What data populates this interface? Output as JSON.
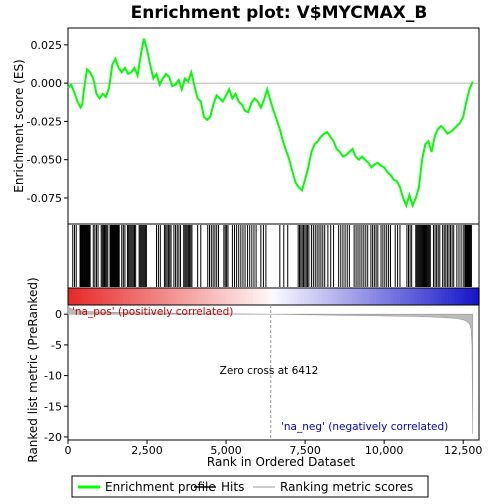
{
  "chart_data": {
    "type": "line",
    "title": "Enrichment plot: V$MYCMAX_B",
    "xlabel": "Rank in Ordered Dataset",
    "es_ylabel": "Enrichment score (ES)",
    "metric_ylabel": "Ranked list metric (PreRanked)",
    "xlim": [
      0,
      13000
    ],
    "x_ticks": [
      0,
      2500,
      5000,
      7500,
      10000,
      12500
    ],
    "x_tick_labels": [
      "0",
      "2,500",
      "5,000",
      "7,500",
      "10,000",
      "12,500"
    ],
    "es_ylim": [
      -0.092,
      0.036
    ],
    "es_ticks": [
      0.025,
      0.0,
      -0.025,
      -0.05,
      -0.075
    ],
    "es_tick_labels": [
      "0.025",
      "0.000",
      "-0.025",
      "-0.050",
      "-0.075"
    ],
    "metric_ylim": [
      -20.5,
      1.5
    ],
    "metric_ticks": [
      0,
      -5,
      -10,
      -15,
      -20
    ],
    "metric_tick_labels": [
      "0",
      "-5",
      "-10",
      "-15",
      "-20"
    ],
    "n_genes": 12800,
    "zero_cross": 6412,
    "annotations": {
      "pos_label": "'na_pos' (positively correlated)",
      "neg_label": "'na_neg' (negatively correlated)",
      "zero_cross_label": "Zero cross at 6412"
    },
    "legend": {
      "placement": "bottom",
      "items": [
        {
          "label": "Enrichment profile",
          "color": "#00ff00"
        },
        {
          "label": "Hits",
          "color": "#000000"
        },
        {
          "label": "Ranking metric scores",
          "color": "#bbbbbb"
        }
      ]
    },
    "series": [
      {
        "name": "Enrichment profile",
        "color": "#00ff00",
        "x": [
          0,
          100,
          200,
          300,
          400,
          450,
          500,
          600,
          700,
          800,
          850,
          900,
          1000,
          1100,
          1200,
          1300,
          1400,
          1500,
          1600,
          1700,
          1800,
          1900,
          2000,
          2100,
          2200,
          2300,
          2400,
          2500,
          2600,
          2700,
          2800,
          2900,
          3000,
          3100,
          3200,
          3300,
          3400,
          3500,
          3600,
          3700,
          3800,
          3900,
          4000,
          4100,
          4200,
          4300,
          4400,
          4500,
          4600,
          4700,
          4800,
          4900,
          5000,
          5100,
          5200,
          5300,
          5400,
          5500,
          5600,
          5700,
          5800,
          5900,
          6000,
          6100,
          6200,
          6300,
          6412,
          6500,
          6600,
          6700,
          6800,
          6900,
          7000,
          7100,
          7200,
          7300,
          7400,
          7500,
          7600,
          7700,
          7800,
          7900,
          8000,
          8100,
          8200,
          8300,
          8400,
          8500,
          8600,
          8700,
          8800,
          8900,
          9000,
          9100,
          9200,
          9300,
          9400,
          9500,
          9600,
          9700,
          9800,
          9900,
          10000,
          10100,
          10200,
          10300,
          10400,
          10500,
          10600,
          10700,
          10800,
          10900,
          11000,
          11100,
          11200,
          11300,
          11400,
          11500,
          11600,
          11700,
          11800,
          11900,
          12000,
          12100,
          12200,
          12300,
          12400,
          12500,
          12600,
          12700,
          12800
        ],
        "y": [
          -0.003,
          -0.001,
          -0.006,
          -0.012,
          -0.016,
          -0.014,
          -0.005,
          0.009,
          0.007,
          0.003,
          -0.002,
          -0.007,
          -0.01,
          -0.007,
          -0.009,
          -0.003,
          0.012,
          0.016,
          0.01,
          0.007,
          0.01,
          0.006,
          0.007,
          0.01,
          0.005,
          0.018,
          0.029,
          0.022,
          0.012,
          0.003,
          0.006,
          -0.001,
          0.003,
          0.006,
          0.004,
          -0.002,
          -0.001,
          0.002,
          -0.004,
          0.003,
          0.001,
          0.007,
          -0.002,
          -0.01,
          -0.012,
          -0.022,
          -0.024,
          -0.022,
          -0.014,
          -0.008,
          -0.01,
          -0.012,
          -0.008,
          -0.004,
          -0.01,
          -0.007,
          -0.012,
          -0.014,
          -0.018,
          -0.019,
          -0.013,
          -0.01,
          -0.012,
          -0.016,
          -0.011,
          -0.004,
          -0.012,
          -0.018,
          -0.024,
          -0.03,
          -0.038,
          -0.044,
          -0.05,
          -0.058,
          -0.065,
          -0.068,
          -0.07,
          -0.063,
          -0.055,
          -0.045,
          -0.04,
          -0.038,
          -0.035,
          -0.033,
          -0.032,
          -0.035,
          -0.038,
          -0.043,
          -0.045,
          -0.048,
          -0.047,
          -0.045,
          -0.043,
          -0.048,
          -0.05,
          -0.048,
          -0.05,
          -0.052,
          -0.055,
          -0.053,
          -0.052,
          -0.054,
          -0.055,
          -0.058,
          -0.06,
          -0.063,
          -0.064,
          -0.068,
          -0.075,
          -0.08,
          -0.073,
          -0.08,
          -0.075,
          -0.068,
          -0.05,
          -0.04,
          -0.038,
          -0.045,
          -0.035,
          -0.03,
          -0.028,
          -0.03,
          -0.033,
          -0.032,
          -0.03,
          -0.028,
          -0.026,
          -0.022,
          -0.012,
          -0.004,
          0.001
        ]
      }
    ],
    "hit_clusters": [
      {
        "start": 150,
        "end": 260,
        "n": 3
      },
      {
        "start": 380,
        "end": 700,
        "n": 16
      },
      {
        "start": 800,
        "end": 950,
        "n": 4
      },
      {
        "start": 1050,
        "end": 1260,
        "n": 7
      },
      {
        "start": 1330,
        "end": 1620,
        "n": 14
      },
      {
        "start": 1700,
        "end": 1800,
        "n": 3
      },
      {
        "start": 1880,
        "end": 2140,
        "n": 8
      },
      {
        "start": 2250,
        "end": 2480,
        "n": 8
      },
      {
        "start": 2800,
        "end": 2920,
        "n": 3
      },
      {
        "start": 3050,
        "end": 3260,
        "n": 6
      },
      {
        "start": 3350,
        "end": 3560,
        "n": 5
      },
      {
        "start": 3660,
        "end": 3920,
        "n": 8
      },
      {
        "start": 4100,
        "end": 4200,
        "n": 2
      },
      {
        "start": 4420,
        "end": 4760,
        "n": 7
      },
      {
        "start": 4930,
        "end": 5060,
        "n": 4
      },
      {
        "start": 5200,
        "end": 5600,
        "n": 7
      },
      {
        "start": 5680,
        "end": 5950,
        "n": 5
      },
      {
        "start": 6100,
        "end": 6260,
        "n": 3
      },
      {
        "start": 6700,
        "end": 6950,
        "n": 3
      },
      {
        "start": 7280,
        "end": 7620,
        "n": 9
      },
      {
        "start": 7700,
        "end": 8120,
        "n": 8
      },
      {
        "start": 8220,
        "end": 8400,
        "n": 3
      },
      {
        "start": 8560,
        "end": 8900,
        "n": 6
      },
      {
        "start": 9050,
        "end": 9480,
        "n": 8
      },
      {
        "start": 9580,
        "end": 9800,
        "n": 5
      },
      {
        "start": 9900,
        "end": 10200,
        "n": 6
      },
      {
        "start": 10350,
        "end": 10500,
        "n": 3
      },
      {
        "start": 10720,
        "end": 10870,
        "n": 4
      },
      {
        "start": 11000,
        "end": 11460,
        "n": 16
      },
      {
        "start": 11560,
        "end": 11760,
        "n": 5
      },
      {
        "start": 11850,
        "end": 12200,
        "n": 8
      },
      {
        "start": 12300,
        "end": 12500,
        "n": 4
      },
      {
        "start": 12550,
        "end": 12760,
        "n": 10
      }
    ],
    "metric_curve": {
      "x": [
        0,
        50,
        150,
        300,
        600,
        1000,
        2000,
        3000,
        4000,
        5000,
        6000,
        6412,
        7000,
        8000,
        9000,
        10000,
        11000,
        11500,
        12000,
        12300,
        12500,
        12600,
        12700,
        12750,
        12780,
        12800
      ],
      "y": [
        1.4,
        1.0,
        0.8,
        0.6,
        0.45,
        0.35,
        0.25,
        0.18,
        0.12,
        0.07,
        0.02,
        0.0,
        -0.05,
        -0.12,
        -0.2,
        -0.28,
        -0.38,
        -0.45,
        -0.58,
        -0.7,
        -0.9,
        -1.1,
        -1.6,
        -2.4,
        -5.0,
        -19.5
      ]
    }
  }
}
